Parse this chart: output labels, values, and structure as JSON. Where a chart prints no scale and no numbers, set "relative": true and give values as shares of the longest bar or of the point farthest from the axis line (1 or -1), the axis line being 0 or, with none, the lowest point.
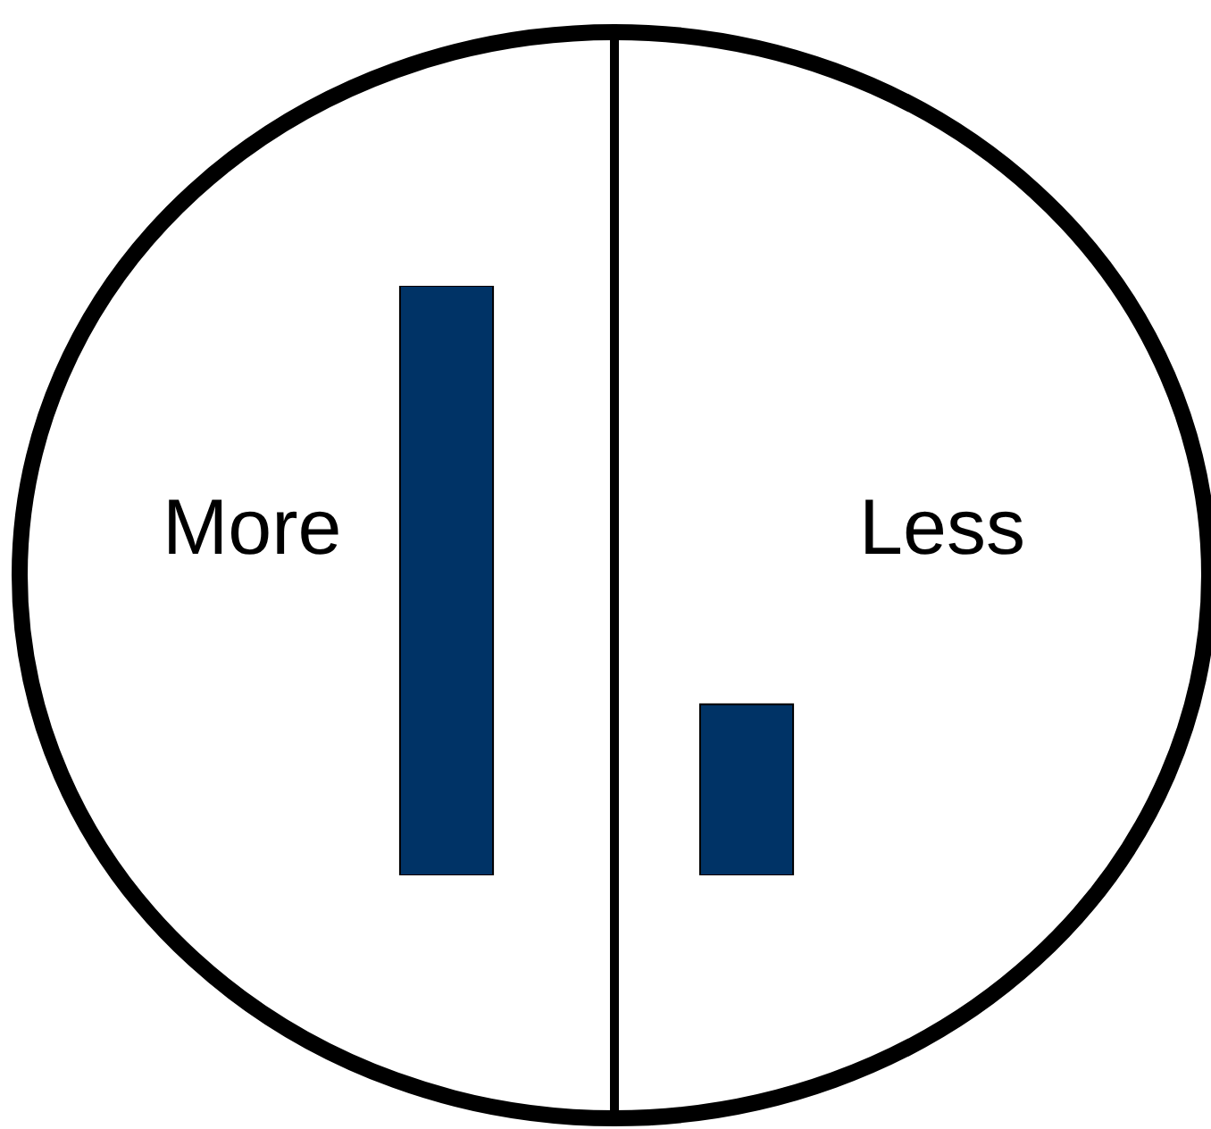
{
  "chart_data": {
    "type": "bar",
    "relative": true,
    "categories": [
      "More",
      "Less"
    ],
    "values": [
      1,
      0.29
    ],
    "color": "#003366"
  }
}
